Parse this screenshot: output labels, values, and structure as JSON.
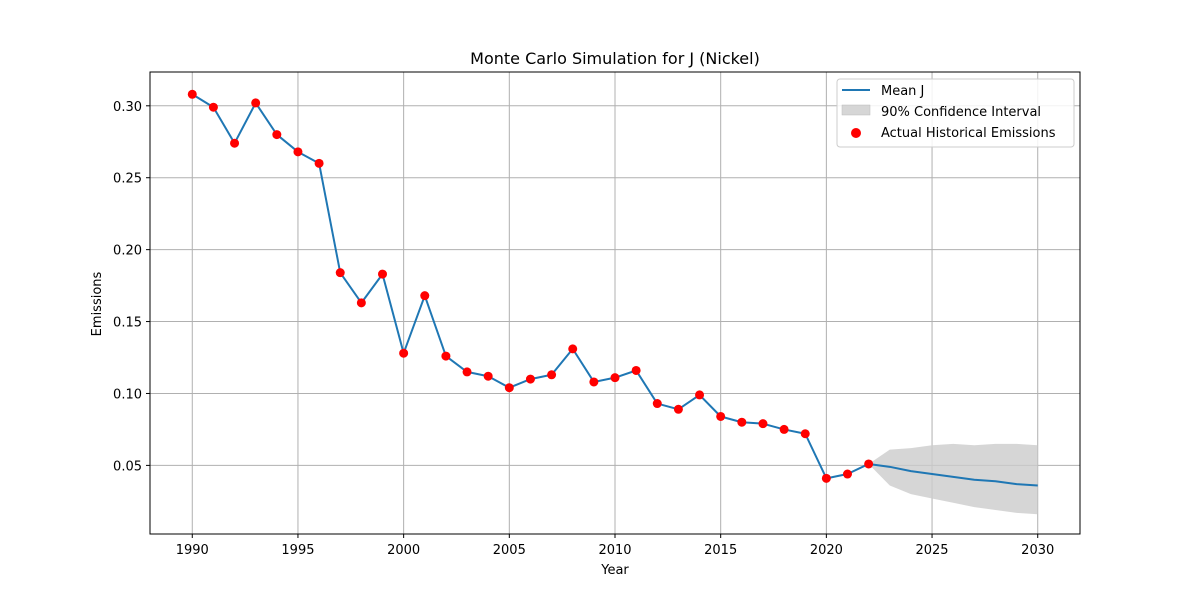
{
  "chart_data": {
    "type": "line",
    "title": "Monte Carlo Simulation for J (Nickel)",
    "xlabel": "Year",
    "ylabel": "Emissions",
    "xlim": [
      1988,
      2032
    ],
    "ylim": [
      0.0023,
      0.3235
    ],
    "xticks": [
      1990,
      1995,
      2000,
      2005,
      2010,
      2015,
      2020,
      2025,
      2030
    ],
    "yticks": [
      0.05,
      0.1,
      0.15,
      0.2,
      0.25,
      0.3
    ],
    "ytick_labels": [
      "0.05",
      "0.10",
      "0.15",
      "0.20",
      "0.25",
      "0.30"
    ],
    "grid": true,
    "legend_position": "top-right",
    "legend": [
      "Mean J",
      "90% Confidence Interval",
      "Actual Historical Emissions"
    ],
    "series": [
      {
        "name": "Mean J",
        "color": "#1f77b4",
        "x": [
          1990,
          1991,
          1992,
          1993,
          1994,
          1995,
          1996,
          1997,
          1998,
          1999,
          2000,
          2001,
          2002,
          2003,
          2004,
          2005,
          2006,
          2007,
          2008,
          2009,
          2010,
          2011,
          2012,
          2013,
          2014,
          2015,
          2016,
          2017,
          2018,
          2019,
          2020,
          2021,
          2022,
          2023,
          2024,
          2025,
          2026,
          2027,
          2028,
          2029,
          2030
        ],
        "values": [
          0.308,
          0.299,
          0.274,
          0.302,
          0.28,
          0.268,
          0.26,
          0.184,
          0.163,
          0.183,
          0.128,
          0.168,
          0.126,
          0.115,
          0.112,
          0.104,
          0.11,
          0.113,
          0.131,
          0.108,
          0.111,
          0.116,
          0.093,
          0.089,
          0.099,
          0.084,
          0.08,
          0.079,
          0.075,
          0.072,
          0.041,
          0.044,
          0.051,
          0.049,
          0.046,
          0.044,
          0.042,
          0.04,
          0.039,
          0.037,
          0.036
        ]
      },
      {
        "name": "90% Confidence Interval",
        "color": "#cccccc",
        "x": [
          2022,
          2023,
          2024,
          2025,
          2026,
          2027,
          2028,
          2029,
          2030
        ],
        "lower": [
          0.051,
          0.036,
          0.03,
          0.027,
          0.024,
          0.021,
          0.019,
          0.017,
          0.016
        ],
        "upper": [
          0.051,
          0.061,
          0.062,
          0.064,
          0.065,
          0.064,
          0.065,
          0.065,
          0.064
        ]
      },
      {
        "name": "Actual Historical Emissions",
        "color": "#ff0000",
        "x": [
          1990,
          1991,
          1992,
          1993,
          1994,
          1995,
          1996,
          1997,
          1998,
          1999,
          2000,
          2001,
          2002,
          2003,
          2004,
          2005,
          2006,
          2007,
          2008,
          2009,
          2010,
          2011,
          2012,
          2013,
          2014,
          2015,
          2016,
          2017,
          2018,
          2019,
          2020,
          2021,
          2022
        ],
        "values": [
          0.308,
          0.299,
          0.274,
          0.302,
          0.28,
          0.268,
          0.26,
          0.184,
          0.163,
          0.183,
          0.128,
          0.168,
          0.126,
          0.115,
          0.112,
          0.104,
          0.11,
          0.113,
          0.131,
          0.108,
          0.111,
          0.116,
          0.093,
          0.089,
          0.099,
          0.084,
          0.08,
          0.079,
          0.075,
          0.072,
          0.041,
          0.044,
          0.051
        ]
      }
    ]
  }
}
